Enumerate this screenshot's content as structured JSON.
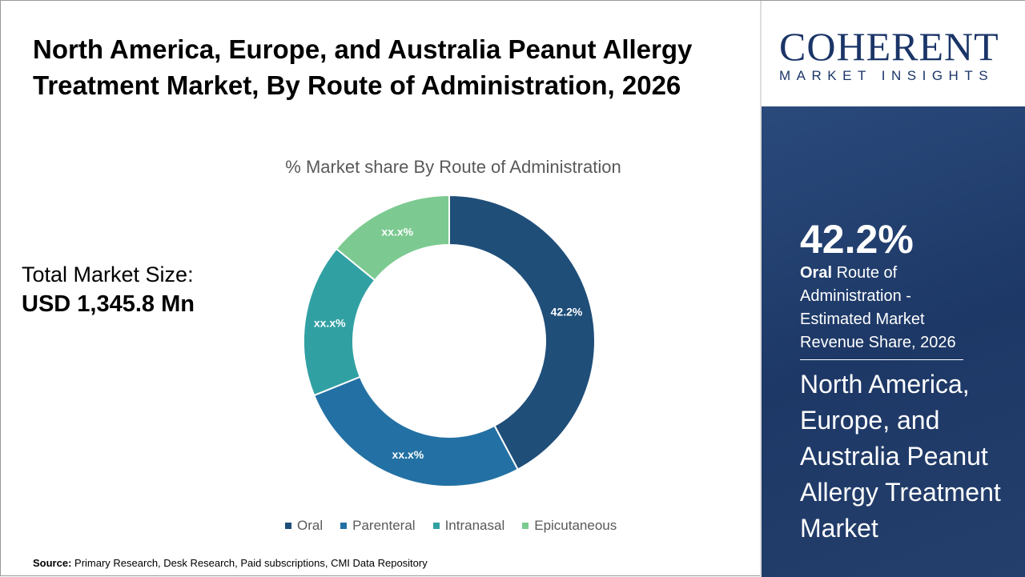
{
  "title": "North America, Europe, and Australia Peanut Allergy Treatment Market, By Route of Administration, 2026",
  "total_market": {
    "label": "Total Market Size:",
    "value": "USD 1,345.8 Mn"
  },
  "source": {
    "label": "Source:",
    "text": " Primary Research, Desk Research, Paid subscriptions, CMI Data Repository"
  },
  "logo": {
    "main": "COHERENT",
    "sub": "MARKET INSIGHTS"
  },
  "highlight": {
    "value": "42.2%",
    "segment": "Oral",
    "description": " Route of Administration - Estimated Market Revenue Share, 2026",
    "market_name": "North America, Europe, and Australia Peanut Allergy Treatment Market"
  },
  "chart_data": {
    "type": "pie",
    "donut": true,
    "title": "% Market share By Route of Administration",
    "categories": [
      "Oral",
      "Parenteral",
      "Intranasal",
      "Epicutaneous"
    ],
    "values": [
      42.2,
      26.7,
      17.0,
      14.1
    ],
    "data_labels": [
      "42.2%",
      "xx.x%",
      "xx.x%",
      "xx.x%"
    ],
    "colors": [
      "#1f4e79",
      "#2371a4",
      "#31a0a3",
      "#7cca91"
    ],
    "legend_position": "bottom"
  }
}
